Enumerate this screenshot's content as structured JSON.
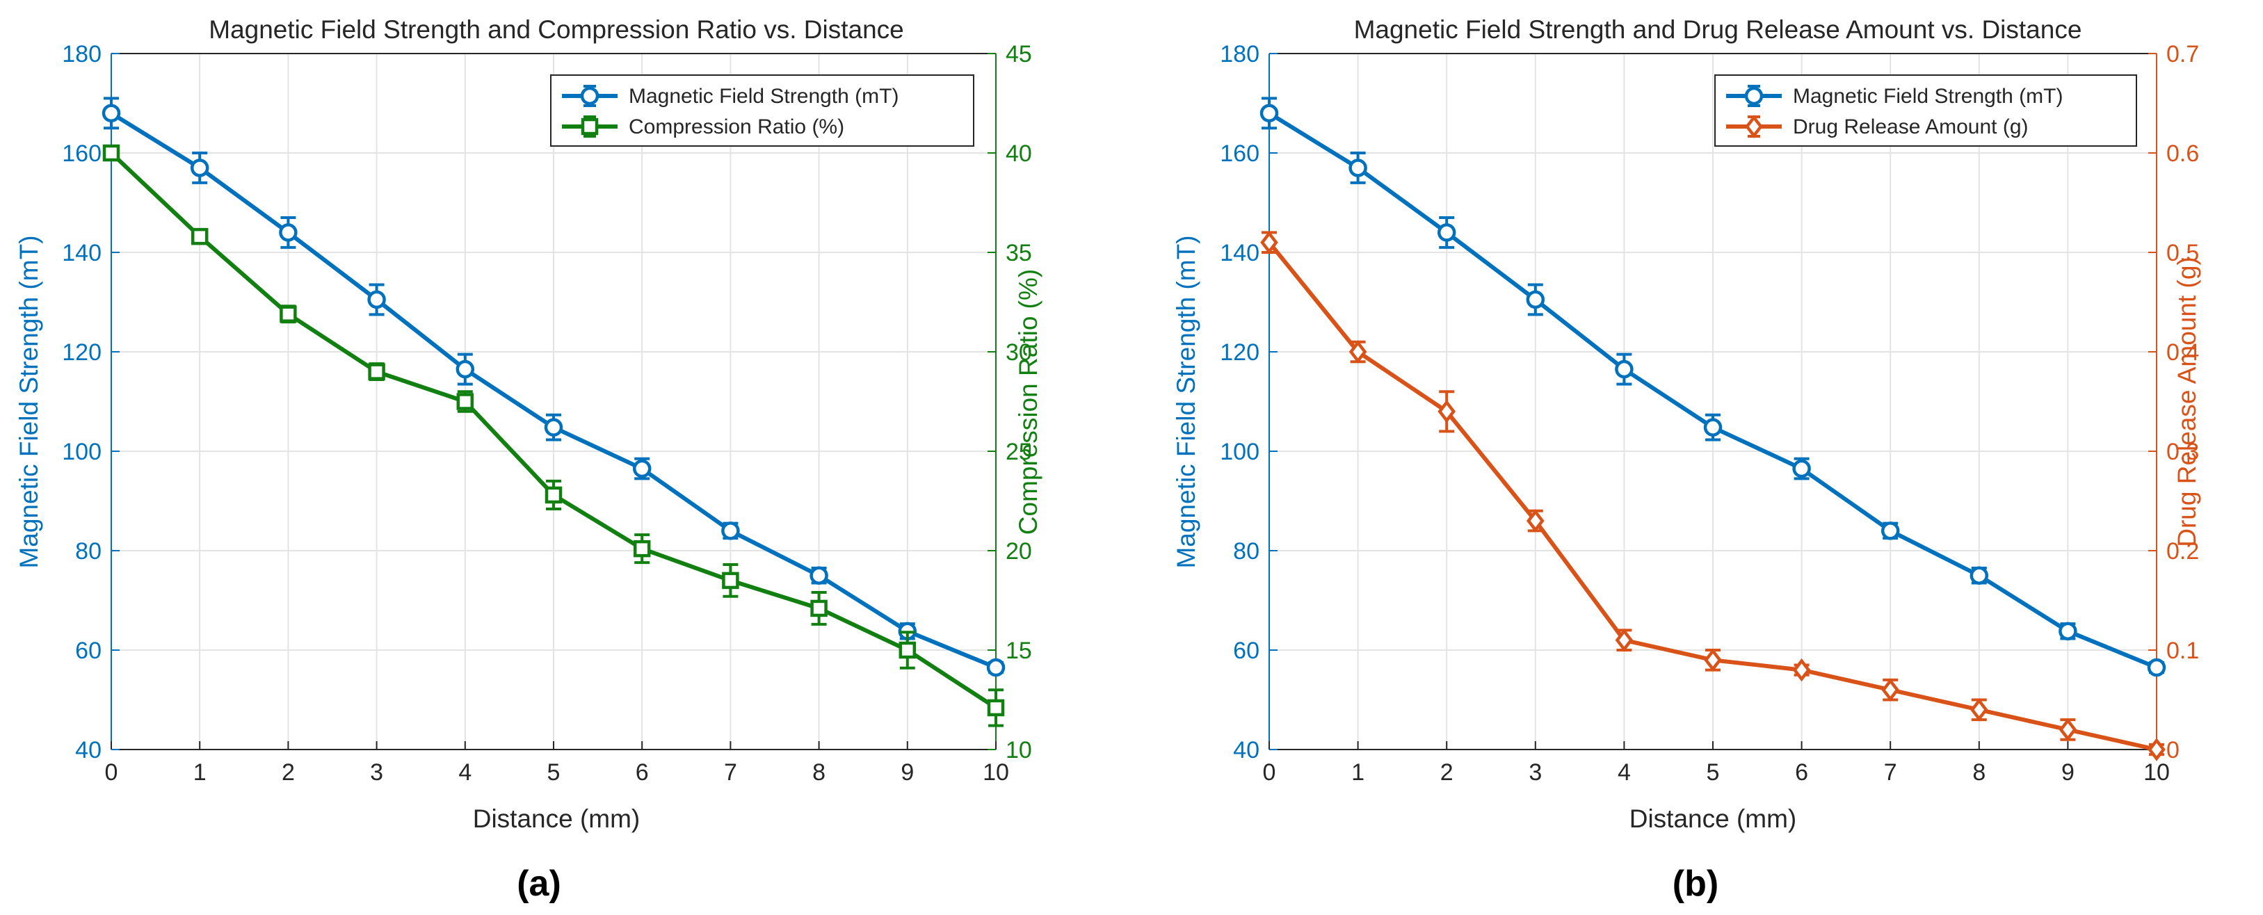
{
  "colors": {
    "blue": "#0072BD",
    "green": "#118011",
    "orange": "#D95319",
    "grid": "#E3E3E3",
    "axis": "#262626"
  },
  "chart_data": [
    {
      "type": "line",
      "panel_label": "(a)",
      "title": "Magnetic Field Strength and Compression Ratio vs. Distance",
      "xlabel": "Distance (mm)",
      "ylabel_left": "Magnetic Field Strength (mT)",
      "ylabel_right": "Compression Ratio (%)",
      "xlim": [
        0,
        10
      ],
      "ylim_left": [
        40,
        180
      ],
      "ylim_right": [
        10,
        45
      ],
      "xticks": [
        0,
        1,
        2,
        3,
        4,
        5,
        6,
        7,
        8,
        9,
        10
      ],
      "yticks_left": [
        40,
        60,
        80,
        100,
        120,
        140,
        160,
        180
      ],
      "yticks_right": [
        10,
        15,
        20,
        25,
        30,
        35,
        40,
        45
      ],
      "legend_position": "top-right",
      "grid": true,
      "x": [
        0,
        1,
        2,
        3,
        4,
        5,
        6,
        7,
        8,
        9,
        10
      ],
      "series": [
        {
          "name": "Magnetic Field Strength (mT)",
          "axis": "left",
          "color": "#0072BD",
          "marker": "circle",
          "values": [
            168,
            157,
            144,
            130.5,
            116.5,
            104.8,
            96.5,
            84,
            75,
            63.8,
            56.5
          ],
          "errors": [
            3,
            3,
            3,
            3,
            3,
            2.5,
            2,
            1.5,
            1.5,
            1.5,
            1
          ]
        },
        {
          "name": "Compression Ratio (%)",
          "axis": "right",
          "color": "#118011",
          "marker": "square",
          "values": [
            40,
            35.8,
            31.9,
            29,
            27.5,
            22.8,
            20.1,
            18.5,
            17.1,
            15,
            12.1
          ],
          "errors": [
            0.3,
            0.3,
            0.4,
            0.4,
            0.5,
            0.7,
            0.7,
            0.8,
            0.8,
            0.9,
            0.9
          ]
        }
      ]
    },
    {
      "type": "line",
      "panel_label": "(b)",
      "title": "Magnetic Field Strength and Drug Release Amount vs. Distance",
      "xlabel": "Distance (mm)",
      "ylabel_left": "Magnetic Field Strength (mT)",
      "ylabel_right": "Drug Release Amount (g)",
      "xlim": [
        0,
        10
      ],
      "ylim_left": [
        40,
        180
      ],
      "ylim_right": [
        0,
        0.7
      ],
      "xticks": [
        0,
        1,
        2,
        3,
        4,
        5,
        6,
        7,
        8,
        9,
        10
      ],
      "yticks_left": [
        40,
        60,
        80,
        100,
        120,
        140,
        160,
        180
      ],
      "yticks_right": [
        "0",
        "0.1",
        "0.2",
        "0.3",
        "0.4",
        "0.5",
        "0.6",
        "0.7"
      ],
      "legend_position": "top-right",
      "grid": true,
      "x": [
        0,
        1,
        2,
        3,
        4,
        5,
        6,
        7,
        8,
        9,
        10
      ],
      "series": [
        {
          "name": "Magnetic Field Strength (mT)",
          "axis": "left",
          "color": "#0072BD",
          "marker": "circle",
          "values": [
            168,
            157,
            144,
            130.5,
            116.5,
            104.8,
            96.5,
            84,
            75,
            63.8,
            56.5
          ],
          "errors": [
            3,
            3,
            3,
            3,
            3,
            2.5,
            2,
            1.5,
            1.5,
            1.5,
            1
          ]
        },
        {
          "name": "Drug Release Amount (g)",
          "axis": "right",
          "color": "#D95319",
          "marker": "diamond",
          "values": [
            0.51,
            0.4,
            0.34,
            0.23,
            0.11,
            0.09,
            0.08,
            0.06,
            0.04,
            0.02,
            0
          ],
          "errors": [
            0.01,
            0.01,
            0.02,
            0.01,
            0.01,
            0.01,
            0.005,
            0.01,
            0.01,
            0.01,
            0.005
          ]
        }
      ]
    }
  ]
}
